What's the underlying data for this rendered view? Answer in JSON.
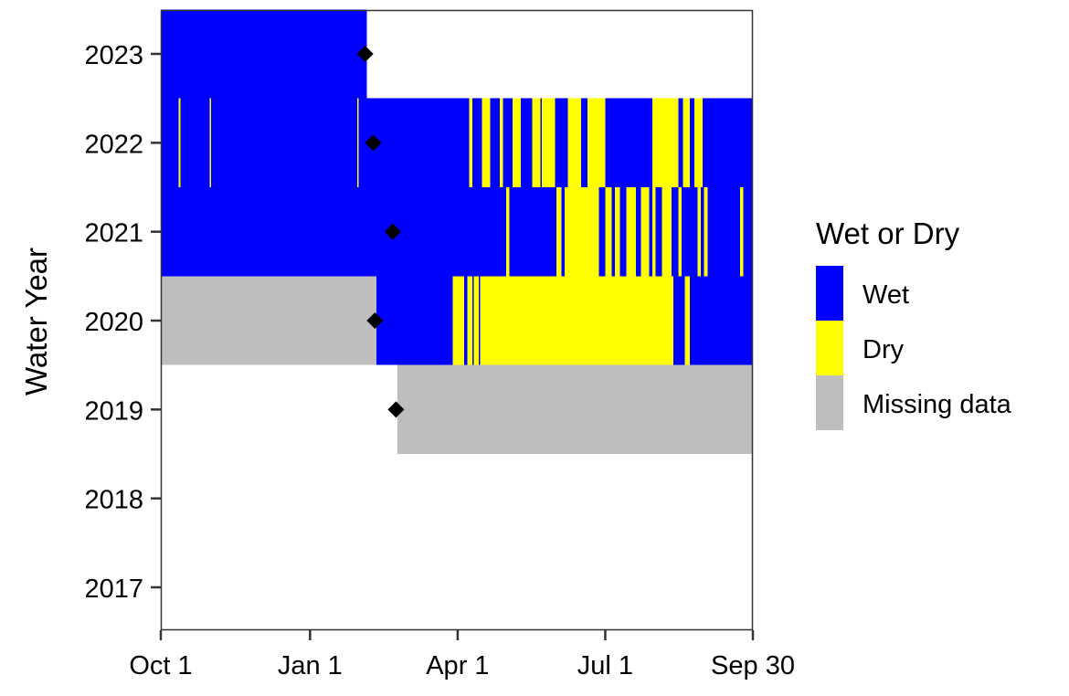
{
  "chart_data": {
    "type": "heatmap",
    "title": "",
    "xlabel": "",
    "ylabel": "Water Year",
    "x_range_days": [
      0,
      365
    ],
    "x_ticks": [
      {
        "label": "Oct 1",
        "day": 0
      },
      {
        "label": "Jan 1",
        "day": 92
      },
      {
        "label": "Apr 1",
        "day": 183
      },
      {
        "label": "Jul 1",
        "day": 274
      },
      {
        "label": "Sep 30",
        "day": 365
      }
    ],
    "y_ticks": [
      "2017",
      "2018",
      "2019",
      "2020",
      "2021",
      "2022",
      "2023"
    ],
    "legend": {
      "title": "Wet or Dry",
      "position": "right",
      "entries": [
        {
          "label": "Wet",
          "color": "#0000FF"
        },
        {
          "label": "Dry",
          "color": "#FFFF00"
        },
        {
          "label": "Missing data",
          "color": "#BEBEBE"
        }
      ]
    },
    "grid": false,
    "colors": {
      "Wet": "#0000FF",
      "Dry": "#FFFF00",
      "Missing data": "#BEBEBE"
    },
    "series": [
      {
        "year": "2023",
        "segments": [
          {
            "status": "Wet",
            "start": 0,
            "end": 127
          }
        ],
        "marker_day": 126
      },
      {
        "year": "2022",
        "segments": [
          {
            "status": "Wet",
            "start": 0,
            "end": 365
          },
          {
            "status": "Dry",
            "start": 11,
            "end": 12
          },
          {
            "status": "Dry",
            "start": 30,
            "end": 31
          },
          {
            "status": "Dry",
            "start": 121,
            "end": 122
          },
          {
            "status": "Dry",
            "start": 190,
            "end": 192
          },
          {
            "status": "Dry",
            "start": 198,
            "end": 203
          },
          {
            "status": "Dry",
            "start": 209,
            "end": 211
          },
          {
            "status": "Dry",
            "start": 217,
            "end": 222
          },
          {
            "status": "Dry",
            "start": 229,
            "end": 234
          },
          {
            "status": "Dry",
            "start": 235,
            "end": 243
          },
          {
            "status": "Dry",
            "start": 251,
            "end": 259
          },
          {
            "status": "Dry",
            "start": 263,
            "end": 274
          },
          {
            "status": "Dry",
            "start": 303,
            "end": 319
          },
          {
            "status": "Dry",
            "start": 322,
            "end": 326
          },
          {
            "status": "Dry",
            "start": 329,
            "end": 334
          }
        ],
        "marker_day": 131
      },
      {
        "year": "2021",
        "segments": [
          {
            "status": "Wet",
            "start": 0,
            "end": 365
          },
          {
            "status": "Dry",
            "start": 213,
            "end": 215
          },
          {
            "status": "Dry",
            "start": 244,
            "end": 247
          },
          {
            "status": "Dry",
            "start": 249,
            "end": 270
          },
          {
            "status": "Dry",
            "start": 274,
            "end": 278
          },
          {
            "status": "Dry",
            "start": 280,
            "end": 283
          },
          {
            "status": "Dry",
            "start": 287,
            "end": 293
          },
          {
            "status": "Dry",
            "start": 296,
            "end": 301
          },
          {
            "status": "Dry",
            "start": 303,
            "end": 305
          },
          {
            "status": "Dry",
            "start": 309,
            "end": 315
          },
          {
            "status": "Dry",
            "start": 319,
            "end": 321
          },
          {
            "status": "Dry",
            "start": 331,
            "end": 333
          },
          {
            "status": "Dry",
            "start": 335,
            "end": 337
          },
          {
            "status": "Dry",
            "start": 357,
            "end": 359
          }
        ],
        "marker_day": 143
      },
      {
        "year": "2020",
        "segments": [
          {
            "status": "Missing data",
            "start": 0,
            "end": 133
          },
          {
            "status": "Wet",
            "start": 133,
            "end": 180
          },
          {
            "status": "Dry",
            "start": 180,
            "end": 187
          },
          {
            "status": "Wet",
            "start": 187,
            "end": 189
          },
          {
            "status": "Dry",
            "start": 189,
            "end": 192
          },
          {
            "status": "Wet",
            "start": 192,
            "end": 193
          },
          {
            "status": "Dry",
            "start": 193,
            "end": 196
          },
          {
            "status": "Wet",
            "start": 196,
            "end": 197
          },
          {
            "status": "Dry",
            "start": 197,
            "end": 316
          },
          {
            "status": "Wet",
            "start": 316,
            "end": 323
          },
          {
            "status": "Dry",
            "start": 323,
            "end": 326
          },
          {
            "status": "Wet",
            "start": 326,
            "end": 365
          }
        ],
        "marker_day": 132
      },
      {
        "year": "2019",
        "segments": [
          {
            "status": "Missing data",
            "start": 146,
            "end": 365
          }
        ],
        "marker_day": 145
      },
      {
        "year": "2018",
        "segments": [],
        "marker_day": null
      },
      {
        "year": "2017",
        "segments": [],
        "marker_day": null
      }
    ]
  }
}
